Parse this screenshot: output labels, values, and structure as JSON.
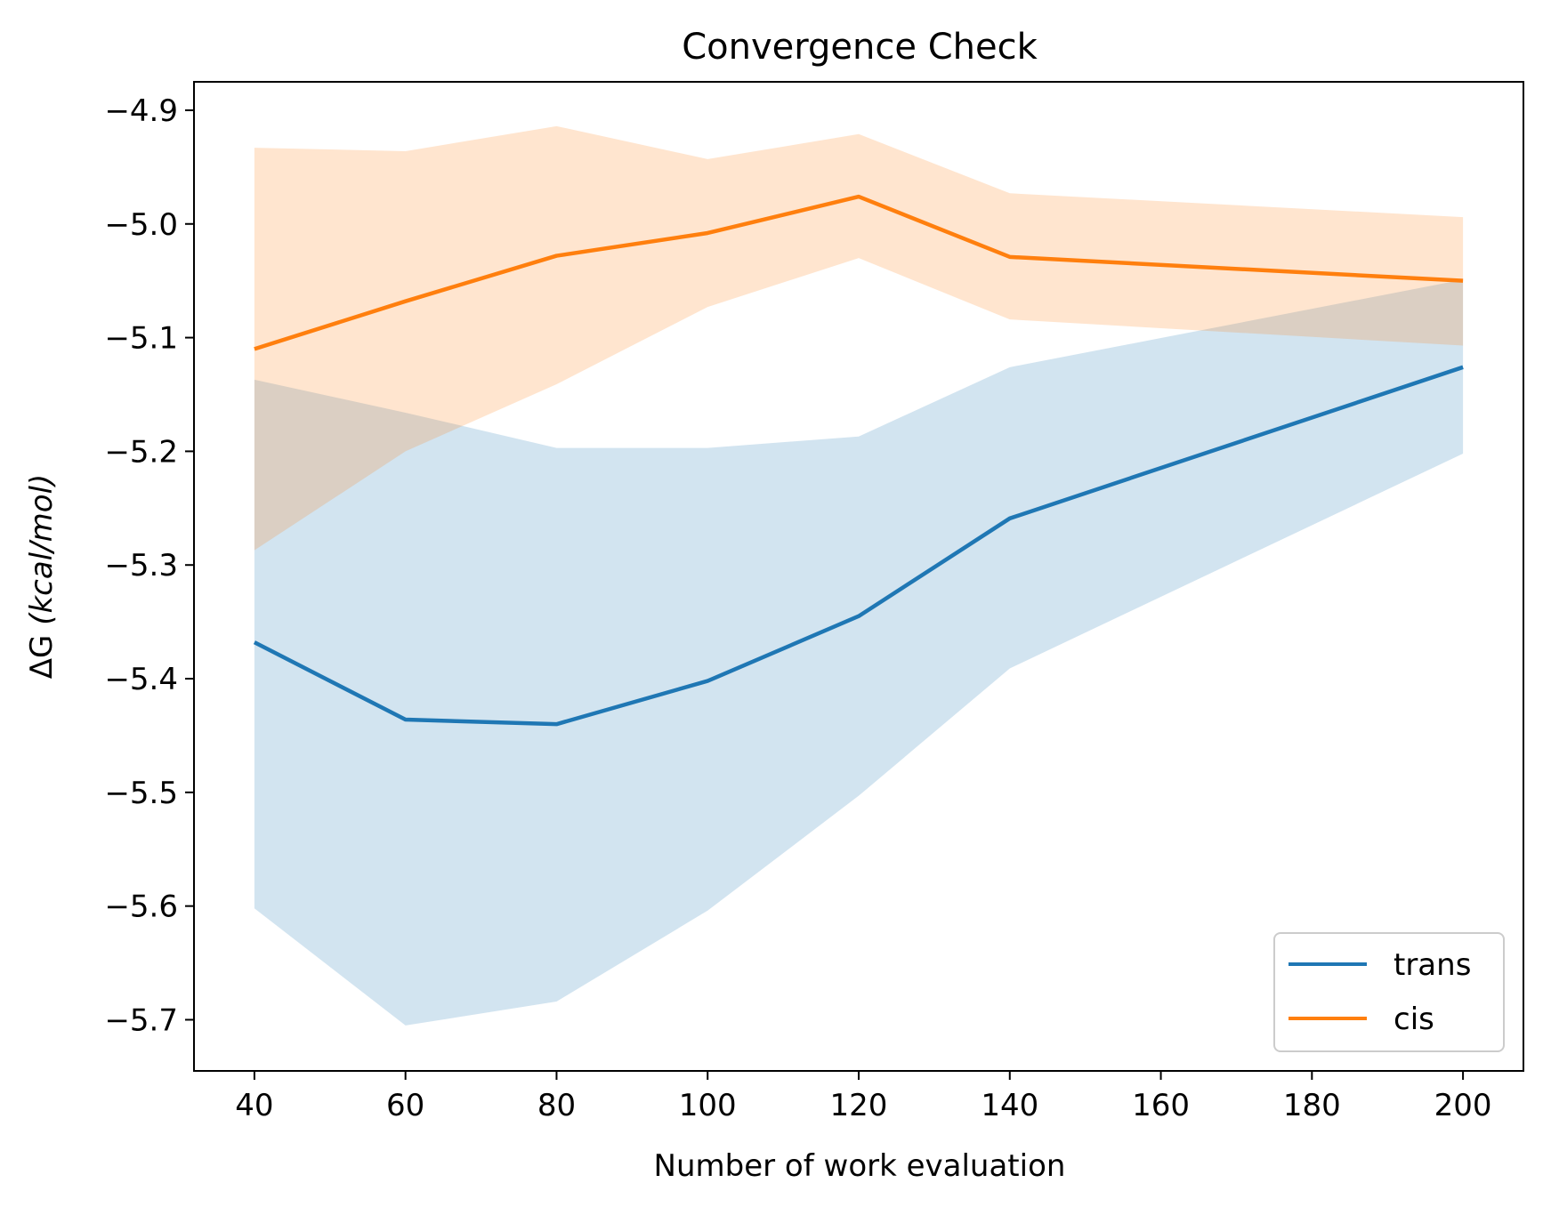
{
  "chart_data": {
    "type": "line",
    "title": "Convergence Check",
    "xlabel": "Number of work evaluation",
    "ylabel_prefix": "ΔG ",
    "ylabel_unit": "(kcal/mol)",
    "xlim": [
      32,
      208
    ],
    "ylim": [
      -5.745,
      -4.875
    ],
    "xticks": [
      40,
      60,
      80,
      100,
      120,
      140,
      160,
      180,
      200
    ],
    "xtick_labels": [
      "40",
      "60",
      "80",
      "100",
      "120",
      "140",
      "160",
      "180",
      "200"
    ],
    "yticks": [
      -4.9,
      -5.0,
      -5.1,
      -5.2,
      -5.3,
      -5.4,
      -5.5,
      -5.6,
      -5.7
    ],
    "ytick_labels": [
      "−4.9",
      "−5.0",
      "−5.1",
      "−5.2",
      "−5.3",
      "−5.4",
      "−5.5",
      "−5.6",
      "−5.7"
    ],
    "grid": false,
    "legend_position": "lower-right",
    "x": [
      40,
      60,
      80,
      100,
      120,
      140,
      200
    ],
    "series": [
      {
        "name": "trans",
        "color": "#1f77b4",
        "band_color": "#1f77b4",
        "values": [
          -5.368,
          -5.436,
          -5.44,
          -5.402,
          -5.345,
          -5.259,
          -5.126
        ],
        "band_lower": [
          -5.602,
          -5.705,
          -5.684,
          -5.604,
          -5.503,
          -5.391,
          -5.202
        ],
        "band_upper": [
          -5.137,
          -5.166,
          -5.197,
          -5.197,
          -5.187,
          -5.126,
          -5.049
        ]
      },
      {
        "name": "cis",
        "color": "#ff7f0e",
        "band_color": "#ff7f0e",
        "values": [
          -5.11,
          -5.068,
          -5.028,
          -5.008,
          -4.976,
          -5.029,
          -5.05
        ],
        "band_lower": [
          -5.287,
          -5.2,
          -5.141,
          -5.073,
          -5.03,
          -5.084,
          -5.107
        ],
        "band_upper": [
          -4.933,
          -4.936,
          -4.914,
          -4.943,
          -4.921,
          -4.973,
          -4.994
        ]
      }
    ]
  }
}
